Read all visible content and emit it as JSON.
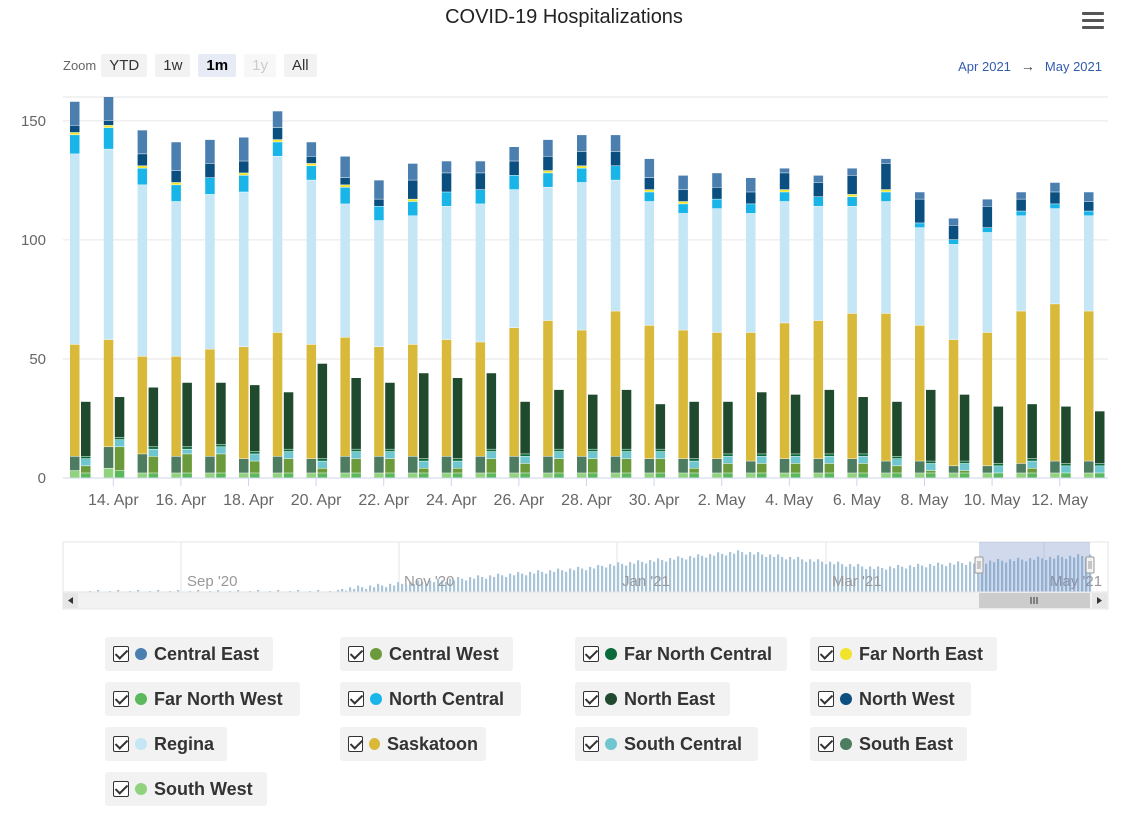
{
  "title": "COVID-19 Hospitalizations",
  "zoom": {
    "label": "Zoom",
    "buttons": [
      "YTD",
      "1w",
      "1m",
      "1y",
      "All"
    ],
    "active": "1m",
    "disabled": [
      "1y"
    ]
  },
  "range": {
    "from": "Apr 2021",
    "to": "May 2021"
  },
  "navigator": {
    "labels": [
      "Sep '20",
      "Nov '20",
      "Jan '21",
      "Mar '21",
      "May '21"
    ]
  },
  "chart_data": {
    "type": "bar",
    "stacked": true,
    "title": "COVID-19 Hospitalizations",
    "ylim": [
      0,
      160
    ],
    "yticks": [
      0,
      50,
      100,
      150
    ],
    "grid": true,
    "x_ticks": [
      "14. Apr",
      "16. Apr",
      "18. Apr",
      "20. Apr",
      "22. Apr",
      "24. Apr",
      "26. Apr",
      "28. Apr",
      "30. Apr",
      "2. May",
      "4. May",
      "6. May",
      "8. May",
      "10. May",
      "12. May"
    ],
    "categories": [
      "13 Apr",
      "14 Apr",
      "15 Apr",
      "16 Apr",
      "17 Apr",
      "18 Apr",
      "19 Apr",
      "20 Apr",
      "21 Apr",
      "22 Apr",
      "23 Apr",
      "24 Apr",
      "25 Apr",
      "26 Apr",
      "27 Apr",
      "28 Apr",
      "29 Apr",
      "30 Apr",
      "1 May",
      "2 May",
      "3 May",
      "4 May",
      "5 May",
      "6 May",
      "7 May",
      "8 May",
      "9 May",
      "10 May",
      "11 May",
      "12 May",
      "13 May"
    ],
    "bar_groups": [
      "Regina/Saskatoon stack",
      "Other regions stack"
    ],
    "series": [
      {
        "name": "South West",
        "color": "#90d27e",
        "group": 0,
        "values": [
          3,
          4,
          2,
          2,
          2,
          2,
          2,
          2,
          2,
          2,
          2,
          2,
          2,
          2,
          2,
          2,
          2,
          2,
          2,
          2,
          2,
          2,
          2,
          2,
          2,
          2,
          2,
          2,
          2,
          2,
          2
        ]
      },
      {
        "name": "South East",
        "color": "#4e7c60",
        "group": 0,
        "values": [
          6,
          9,
          8,
          7,
          7,
          6,
          7,
          6,
          7,
          7,
          7,
          7,
          7,
          7,
          7,
          7,
          7,
          6,
          6,
          6,
          5,
          6,
          6,
          6,
          5,
          5,
          3,
          3,
          4,
          5,
          5
        ]
      },
      {
        "name": "Saskatoon",
        "color": "#d9b93a",
        "group": 0,
        "values": [
          47,
          45,
          41,
          42,
          45,
          47,
          52,
          48,
          50,
          46,
          47,
          49,
          48,
          54,
          57,
          53,
          61,
          56,
          54,
          53,
          54,
          57,
          58,
          61,
          62,
          57,
          53,
          56,
          64,
          66,
          63
        ]
      },
      {
        "name": "Regina",
        "color": "#c4e6f5",
        "group": 0,
        "values": [
          80,
          80,
          72,
          65,
          65,
          65,
          74,
          69,
          56,
          53,
          54,
          56,
          58,
          58,
          56,
          62,
          55,
          52,
          49,
          52,
          50,
          51,
          48,
          45,
          47,
          41,
          40,
          42,
          40,
          40,
          40
        ]
      },
      {
        "name": "North Central",
        "color": "#1ab5e8",
        "group": 0,
        "values": [
          8,
          9,
          7,
          7,
          7,
          7,
          6,
          6,
          7,
          6,
          6,
          6,
          6,
          6,
          6,
          6,
          6,
          4,
          4,
          4,
          4,
          4,
          4,
          4,
          4,
          2,
          2,
          2,
          2,
          2,
          2
        ]
      },
      {
        "name": "Far North East",
        "color": "#f2e42c",
        "group": 0,
        "values": [
          1,
          1,
          1,
          1,
          0,
          1,
          1,
          1,
          1,
          0,
          1,
          0,
          0,
          0,
          1,
          1,
          0,
          1,
          1,
          0,
          0,
          1,
          0,
          1,
          1,
          0,
          0,
          0,
          0,
          0,
          0
        ]
      },
      {
        "name": "North West",
        "color": "#0a4f7f",
        "group": 0,
        "values": [
          3,
          2,
          5,
          5,
          6,
          5,
          5,
          3,
          3,
          3,
          8,
          8,
          7,
          6,
          6,
          6,
          6,
          5,
          5,
          5,
          5,
          7,
          6,
          8,
          11,
          10,
          6,
          9,
          5,
          5,
          4
        ]
      },
      {
        "name": "Central East",
        "color": "#4a7fb0",
        "group": 0,
        "values": [
          10,
          10,
          10,
          12,
          10,
          10,
          7,
          6,
          9,
          8,
          7,
          5,
          5,
          6,
          7,
          7,
          7,
          8,
          6,
          6,
          6,
          2,
          3,
          3,
          2,
          3,
          3,
          3,
          3,
          4,
          4
        ]
      },
      {
        "name": "Far North West",
        "color": "#5cb85c",
        "group": 1,
        "values": [
          2,
          3,
          2,
          2,
          2,
          2,
          2,
          2,
          2,
          2,
          2,
          2,
          2,
          2,
          2,
          2,
          2,
          2,
          2,
          2,
          2,
          2,
          2,
          2,
          2,
          2,
          2,
          2,
          2,
          2,
          2
        ]
      },
      {
        "name": "Central West",
        "color": "#6b9a3a",
        "group": 1,
        "values": [
          3,
          10,
          7,
          8,
          8,
          5,
          6,
          2,
          6,
          6,
          2,
          2,
          6,
          4,
          6,
          6,
          6,
          6,
          2,
          4,
          4,
          4,
          4,
          4,
          3,
          1,
          1,
          0,
          2,
          0,
          0
        ]
      },
      {
        "name": "South Central",
        "color": "#6ec6cf",
        "group": 1,
        "values": [
          3,
          3,
          3,
          2,
          3,
          3,
          3,
          3,
          3,
          3,
          3,
          3,
          3,
          3,
          3,
          3,
          3,
          3,
          3,
          3,
          3,
          3,
          3,
          3,
          3,
          3,
          3,
          3,
          3,
          3,
          3
        ]
      },
      {
        "name": "Far North Central",
        "color": "#0a6b3a",
        "group": 1,
        "values": [
          1,
          1,
          1,
          1,
          1,
          1,
          1,
          1,
          1,
          1,
          1,
          1,
          1,
          1,
          1,
          1,
          1,
          1,
          1,
          1,
          1,
          1,
          1,
          1,
          1,
          1,
          1,
          1,
          1,
          1,
          1
        ]
      },
      {
        "name": "North East",
        "color": "#1f4a2e",
        "group": 1,
        "values": [
          23,
          17,
          25,
          27,
          26,
          28,
          24,
          40,
          30,
          28,
          36,
          34,
          32,
          22,
          25,
          23,
          25,
          19,
          24,
          22,
          26,
          25,
          27,
          24,
          23,
          30,
          28,
          24,
          23,
          24,
          22
        ]
      }
    ]
  },
  "legend": [
    {
      "name": "Central East",
      "color": "#4a7fb0"
    },
    {
      "name": "Central West",
      "color": "#6b9a3a"
    },
    {
      "name": "Far North Central",
      "color": "#0a6b3a"
    },
    {
      "name": "Far North East",
      "color": "#f2e42c"
    },
    {
      "name": "Far North West",
      "color": "#5cb85c"
    },
    {
      "name": "North Central",
      "color": "#1ab5e8"
    },
    {
      "name": "North East",
      "color": "#1f4a2e"
    },
    {
      "name": "North West",
      "color": "#0a4f7f"
    },
    {
      "name": "Regina",
      "color": "#c4e6f5"
    },
    {
      "name": "Saskatoon",
      "color": "#d9b93a"
    },
    {
      "name": "South Central",
      "color": "#6ec6cf"
    },
    {
      "name": "South East",
      "color": "#4e7c60"
    },
    {
      "name": "South West",
      "color": "#90d27e"
    }
  ]
}
